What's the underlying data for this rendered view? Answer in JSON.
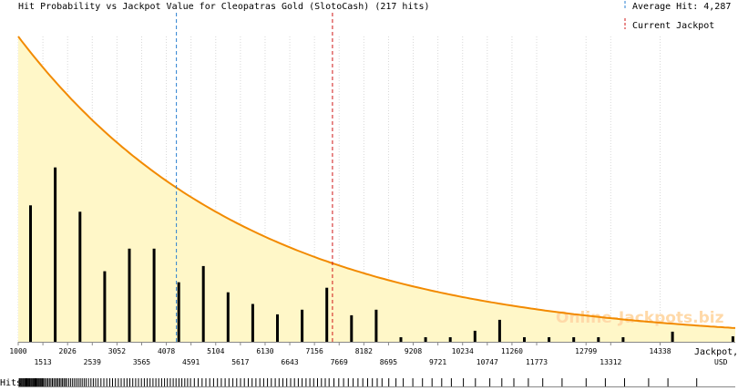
{
  "chart_data": {
    "type": "bar",
    "title": "Hit Probability vs Jackpot Value for Cleopatras Gold (SlotoCash) (217 hits)",
    "xlabel_line1": "Jackpot,",
    "xlabel_line2": "USD",
    "hits_label": "Hits",
    "x_range": [
      1000,
      15900
    ],
    "y_range": [
      0,
      1.0
    ],
    "tick_values": [
      1000,
      1513,
      2026,
      2539,
      3052,
      3565,
      4078,
      4591,
      5104,
      5617,
      6130,
      6643,
      7156,
      7669,
      8182,
      8695,
      9208,
      9721,
      10234,
      10747,
      11260,
      11773,
      12799,
      13312,
      14338
    ],
    "tick_labels": [
      "1000",
      "1513",
      "2026",
      "2539",
      "3052",
      "3565",
      "4078",
      "4591",
      "5104",
      "5617",
      "6130",
      "6643",
      "7156",
      "7669",
      "8182",
      "8695",
      "9208",
      "9721",
      "10234",
      "10747",
      "11260",
      "11773",
      "12799",
      "13312",
      "14338"
    ],
    "bars": [
      {
        "x": 1256,
        "value": 0.447
      },
      {
        "x": 1769,
        "value": 0.571
      },
      {
        "x": 2283,
        "value": 0.426
      },
      {
        "x": 2796,
        "value": 0.231
      },
      {
        "x": 3309,
        "value": 0.305
      },
      {
        "x": 3822,
        "value": 0.305
      },
      {
        "x": 4335,
        "value": 0.195
      },
      {
        "x": 4848,
        "value": 0.248
      },
      {
        "x": 5361,
        "value": 0.162
      },
      {
        "x": 5874,
        "value": 0.124
      },
      {
        "x": 6387,
        "value": 0.09
      },
      {
        "x": 6900,
        "value": 0.105
      },
      {
        "x": 7413,
        "value": 0.177
      },
      {
        "x": 7926,
        "value": 0.087
      },
      {
        "x": 8439,
        "value": 0.105
      },
      {
        "x": 8952,
        "value": 0.015
      },
      {
        "x": 9465,
        "value": 0.015
      },
      {
        "x": 9978,
        "value": 0.015
      },
      {
        "x": 10491,
        "value": 0.036
      },
      {
        "x": 11004,
        "value": 0.072
      },
      {
        "x": 11517,
        "value": 0.015
      },
      {
        "x": 12030,
        "value": 0.015
      },
      {
        "x": 12543,
        "value": 0.015
      },
      {
        "x": 13056,
        "value": 0.015
      },
      {
        "x": 13569,
        "value": 0.015
      },
      {
        "x": 14595,
        "value": 0.033
      },
      {
        "x": 15850,
        "value": 0.018
      }
    ],
    "curve": {
      "y_at_start": 1.0,
      "decay_per_usd": 0.000208
    },
    "markers": [
      {
        "name": "Average Hit",
        "legend_text": "Average Hit: 4,287",
        "x": 4287,
        "color": "#2a7fd0"
      },
      {
        "name": "Current Jackpot",
        "legend_text": "Current Jackpot",
        "x": 7530,
        "color": "#d01818"
      }
    ],
    "hit_marks": [
      1020,
      1040,
      1060,
      1080,
      1100,
      1120,
      1140,
      1160,
      1180,
      1200,
      1215,
      1235,
      1250,
      1270,
      1290,
      1310,
      1330,
      1350,
      1370,
      1390,
      1410,
      1430,
      1450,
      1470,
      1490,
      1510,
      1530,
      1560,
      1590,
      1620,
      1650,
      1680,
      1710,
      1740,
      1770,
      1800,
      1830,
      1860,
      1890,
      1920,
      1950,
      1980,
      2010,
      2050,
      2090,
      2130,
      2170,
      2210,
      2250,
      2290,
      2330,
      2370,
      2410,
      2460,
      2510,
      2560,
      2610,
      2660,
      2720,
      2780,
      2840,
      2900,
      2960,
      3020,
      3080,
      3140,
      3200,
      3260,
      3320,
      3380,
      3440,
      3500,
      3560,
      3620,
      3680,
      3740,
      3800,
      3860,
      3920,
      3980,
      4040,
      4100,
      4160,
      4220,
      4280,
      4340,
      4400,
      4460,
      4520,
      4580,
      4660,
      4740,
      4820,
      4900,
      4980,
      5060,
      5140,
      5220,
      5300,
      5380,
      5460,
      5540,
      5620,
      5700,
      5780,
      5860,
      5940,
      6020,
      6100,
      6180,
      6260,
      6340,
      6420,
      6500,
      6580,
      6660,
      6740,
      6820,
      6900,
      6980,
      7060,
      7140,
      7220,
      7300,
      7380,
      7460,
      7560,
      7660,
      7760,
      7860,
      7960,
      8060,
      8160,
      8260,
      8360,
      8460,
      8560,
      8700,
      8850,
      9000,
      9200,
      9400,
      9600,
      9800,
      10000,
      10250,
      10500,
      10800,
      11050,
      11300,
      11600,
      11900,
      12300,
      12800,
      13200,
      13600,
      14100,
      14500,
      15100
    ],
    "watermark": "Online-Jackpots.biz",
    "colors": {
      "fill": "#fff7c8",
      "curve": "#f28a00",
      "bars": "#000000",
      "grid": "#d8d8d8",
      "axis": "#888888",
      "watermark": "#ffd9a8"
    },
    "grid": true,
    "legend_position": "top-right"
  }
}
